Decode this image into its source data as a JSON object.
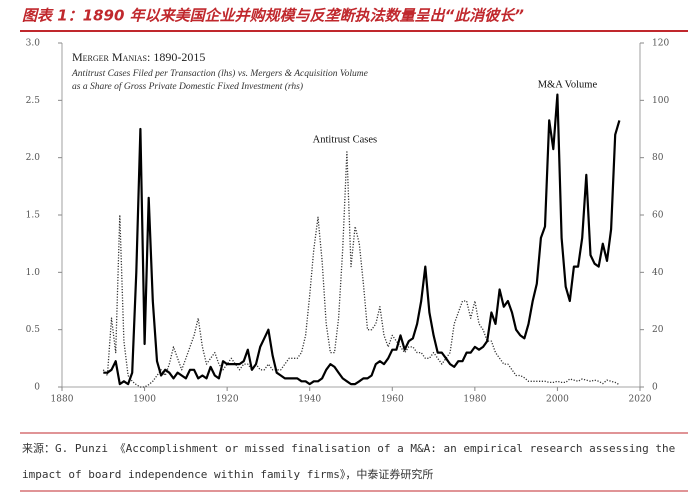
{
  "header": {
    "title": "图表 1：1890 年以来美国企业并购规模与反垄断执法数量呈出“此消彼长”"
  },
  "chart_data": {
    "type": "line",
    "title": "Merger Manias: 1890-2015",
    "subtitle": [
      "Antitrust Cases Filed per Transaction (lhs) vs. Mergers & Acquisition Volume",
      "as a Share of Gross Private Domestic Fixed Investment (rhs)"
    ],
    "x": [
      1890,
      1891,
      1892,
      1893,
      1894,
      1895,
      1896,
      1897,
      1898,
      1899,
      1900,
      1901,
      1902,
      1903,
      1904,
      1905,
      1906,
      1907,
      1908,
      1909,
      1910,
      1911,
      1912,
      1913,
      1914,
      1915,
      1916,
      1917,
      1918,
      1919,
      1920,
      1921,
      1922,
      1923,
      1924,
      1925,
      1926,
      1927,
      1928,
      1929,
      1930,
      1931,
      1932,
      1933,
      1934,
      1935,
      1936,
      1937,
      1938,
      1939,
      1940,
      1941,
      1942,
      1943,
      1944,
      1945,
      1946,
      1947,
      1948,
      1949,
      1950,
      1951,
      1952,
      1953,
      1954,
      1955,
      1956,
      1957,
      1958,
      1959,
      1960,
      1961,
      1962,
      1963,
      1964,
      1965,
      1966,
      1967,
      1968,
      1969,
      1970,
      1971,
      1972,
      1973,
      1974,
      1975,
      1976,
      1977,
      1978,
      1979,
      1980,
      1981,
      1982,
      1983,
      1984,
      1985,
      1986,
      1987,
      1988,
      1989,
      1990,
      1991,
      1992,
      1993,
      1994,
      1995,
      1996,
      1997,
      1998,
      1999,
      2000,
      2001,
      2002,
      2003,
      2004,
      2005,
      2006,
      2007,
      2008,
      2009,
      2010,
      2011,
      2012,
      2013,
      2014,
      2015
    ],
    "series": [
      {
        "name": "Antitrust Cases",
        "color": "#333333",
        "line_style": "dotted",
        "axis": "y",
        "values": [
          0.15,
          0.1,
          0.6,
          0.3,
          1.5,
          0.4,
          0.1,
          0.05,
          0.02,
          0,
          0,
          0.02,
          0.05,
          0.1,
          0.15,
          0.1,
          0.2,
          0.35,
          0.25,
          0.15,
          0.25,
          0.35,
          0.45,
          0.6,
          0.35,
          0.2,
          0.25,
          0.3,
          0.2,
          0.15,
          0.2,
          0.25,
          0.2,
          0.15,
          0.2,
          0.2,
          0.15,
          0.2,
          0.15,
          0.15,
          0.2,
          0.15,
          0.15,
          0.15,
          0.2,
          0.25,
          0.25,
          0.25,
          0.3,
          0.45,
          0.8,
          1.2,
          1.48,
          1.1,
          0.55,
          0.3,
          0.3,
          0.6,
          1.2,
          2.05,
          1.05,
          1.4,
          1.25,
          0.9,
          0.5,
          0.5,
          0.55,
          0.7,
          0.45,
          0.35,
          0.45,
          0.4,
          0.35,
          0.3,
          0.35,
          0.35,
          0.3,
          0.3,
          0.25,
          0.25,
          0.3,
          0.25,
          0.2,
          0.25,
          0.3,
          0.55,
          0.65,
          0.75,
          0.75,
          0.6,
          0.75,
          0.55,
          0.5,
          0.4,
          0.4,
          0.3,
          0.25,
          0.2,
          0.2,
          0.15,
          0.1,
          0.1,
          0.08,
          0.05,
          0.05,
          0.05,
          0.05,
          0.05,
          0.04,
          0.04,
          0.05,
          0.04,
          0.04,
          0.07,
          0.06,
          0.05,
          0.07,
          0.06,
          0.05,
          0.06,
          0.05,
          0.03,
          0.06,
          0.05,
          0.04,
          0.02
        ]
      },
      {
        "name": "M&A Volume",
        "color": "#000000",
        "line_style": "solid",
        "axis": "y2",
        "values": [
          5,
          5,
          6,
          9,
          1,
          2,
          1,
          5,
          40,
          90,
          15,
          66,
          30,
          9,
          4,
          6,
          5,
          3,
          5,
          4,
          3,
          6,
          6,
          3,
          4,
          3,
          7,
          4,
          3,
          9,
          8,
          8,
          8,
          8,
          9,
          13,
          6,
          8,
          14,
          17,
          20,
          11,
          5,
          4,
          3,
          3,
          3,
          3,
          2,
          2,
          1,
          2,
          2,
          3,
          6,
          8,
          7,
          5,
          3,
          2,
          1,
          1,
          2,
          3,
          3,
          4,
          8,
          9,
          8,
          10,
          13,
          13,
          18,
          13,
          16,
          17,
          22,
          30,
          42,
          26,
          18,
          12,
          12,
          10,
          8,
          7,
          9,
          9,
          12,
          12,
          14,
          13,
          14,
          16,
          26,
          22,
          34,
          28,
          30,
          26,
          20,
          18,
          17,
          22,
          30,
          36,
          52,
          56,
          93,
          83,
          102,
          52,
          35,
          30,
          42,
          42,
          52,
          74,
          46,
          43,
          42,
          50,
          44,
          55,
          88,
          93
        ]
      }
    ],
    "xlim": [
      1880,
      2020
    ],
    "xticks": [
      1880,
      1900,
      1920,
      1940,
      1960,
      1980,
      2000,
      2020
    ],
    "ylim": [
      0,
      3
    ],
    "yticks": [
      0,
      0.5,
      {
        "value": 1,
        "label": "1.0"
      },
      1.5,
      {
        "value": 2,
        "label": "2.0"
      },
      2.5,
      {
        "value": 3,
        "label": "3.0"
      }
    ],
    "y2lim": [
      0,
      120
    ],
    "y2ticks": [
      0,
      20,
      40,
      60,
      80,
      100,
      120
    ]
  },
  "source": "来源：G. Punzi 《Accomplishment or missed finalisation of a M&A: an empirical research assessing the impact of board independence within family firms》，中泰证券研究所"
}
